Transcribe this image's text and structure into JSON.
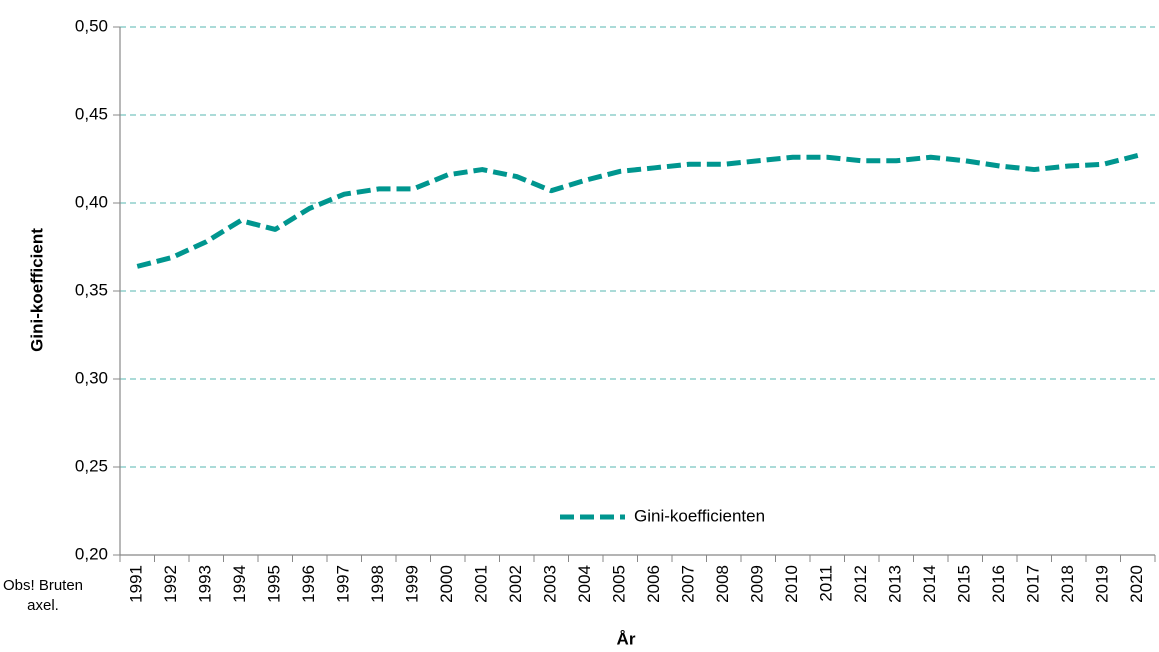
{
  "chart_data": {
    "type": "line",
    "x_label": "År",
    "y_label": "Gini-koefficient",
    "annotation": "Obs! Bruten axel.",
    "categories": [
      "1991",
      "1992",
      "1993",
      "1994",
      "1995",
      "1996",
      "1997",
      "1998",
      "1999",
      "2000",
      "2001",
      "2002",
      "2003",
      "2004",
      "2005",
      "2006",
      "2007",
      "2008",
      "2009",
      "2010",
      "2011",
      "2012",
      "2013",
      "2014",
      "2015",
      "2016",
      "2017",
      "2018",
      "2019",
      "2020"
    ],
    "series": [
      {
        "name": "Gini-koefficienten",
        "color": "#00968f",
        "values": [
          0.364,
          0.369,
          0.378,
          0.39,
          0.385,
          0.397,
          0.405,
          0.408,
          0.408,
          0.416,
          0.419,
          0.415,
          0.407,
          0.413,
          0.418,
          0.42,
          0.422,
          0.422,
          0.424,
          0.426,
          0.426,
          0.424,
          0.424,
          0.426,
          0.424,
          0.421,
          0.419,
          0.421,
          0.422,
          0.427
        ]
      }
    ],
    "ylim": [
      0.2,
      0.5
    ],
    "yticks": [
      {
        "value": 0.2,
        "label": "0,20"
      },
      {
        "value": 0.25,
        "label": "0,25"
      },
      {
        "value": 0.3,
        "label": "0,30"
      },
      {
        "value": 0.35,
        "label": "0,35"
      },
      {
        "value": 0.4,
        "label": "0,40"
      },
      {
        "value": 0.45,
        "label": "0,45"
      },
      {
        "value": 0.5,
        "label": "0,50"
      }
    ],
    "grid": true,
    "grid_color": "#8fcfcb",
    "legend": "bottom"
  }
}
